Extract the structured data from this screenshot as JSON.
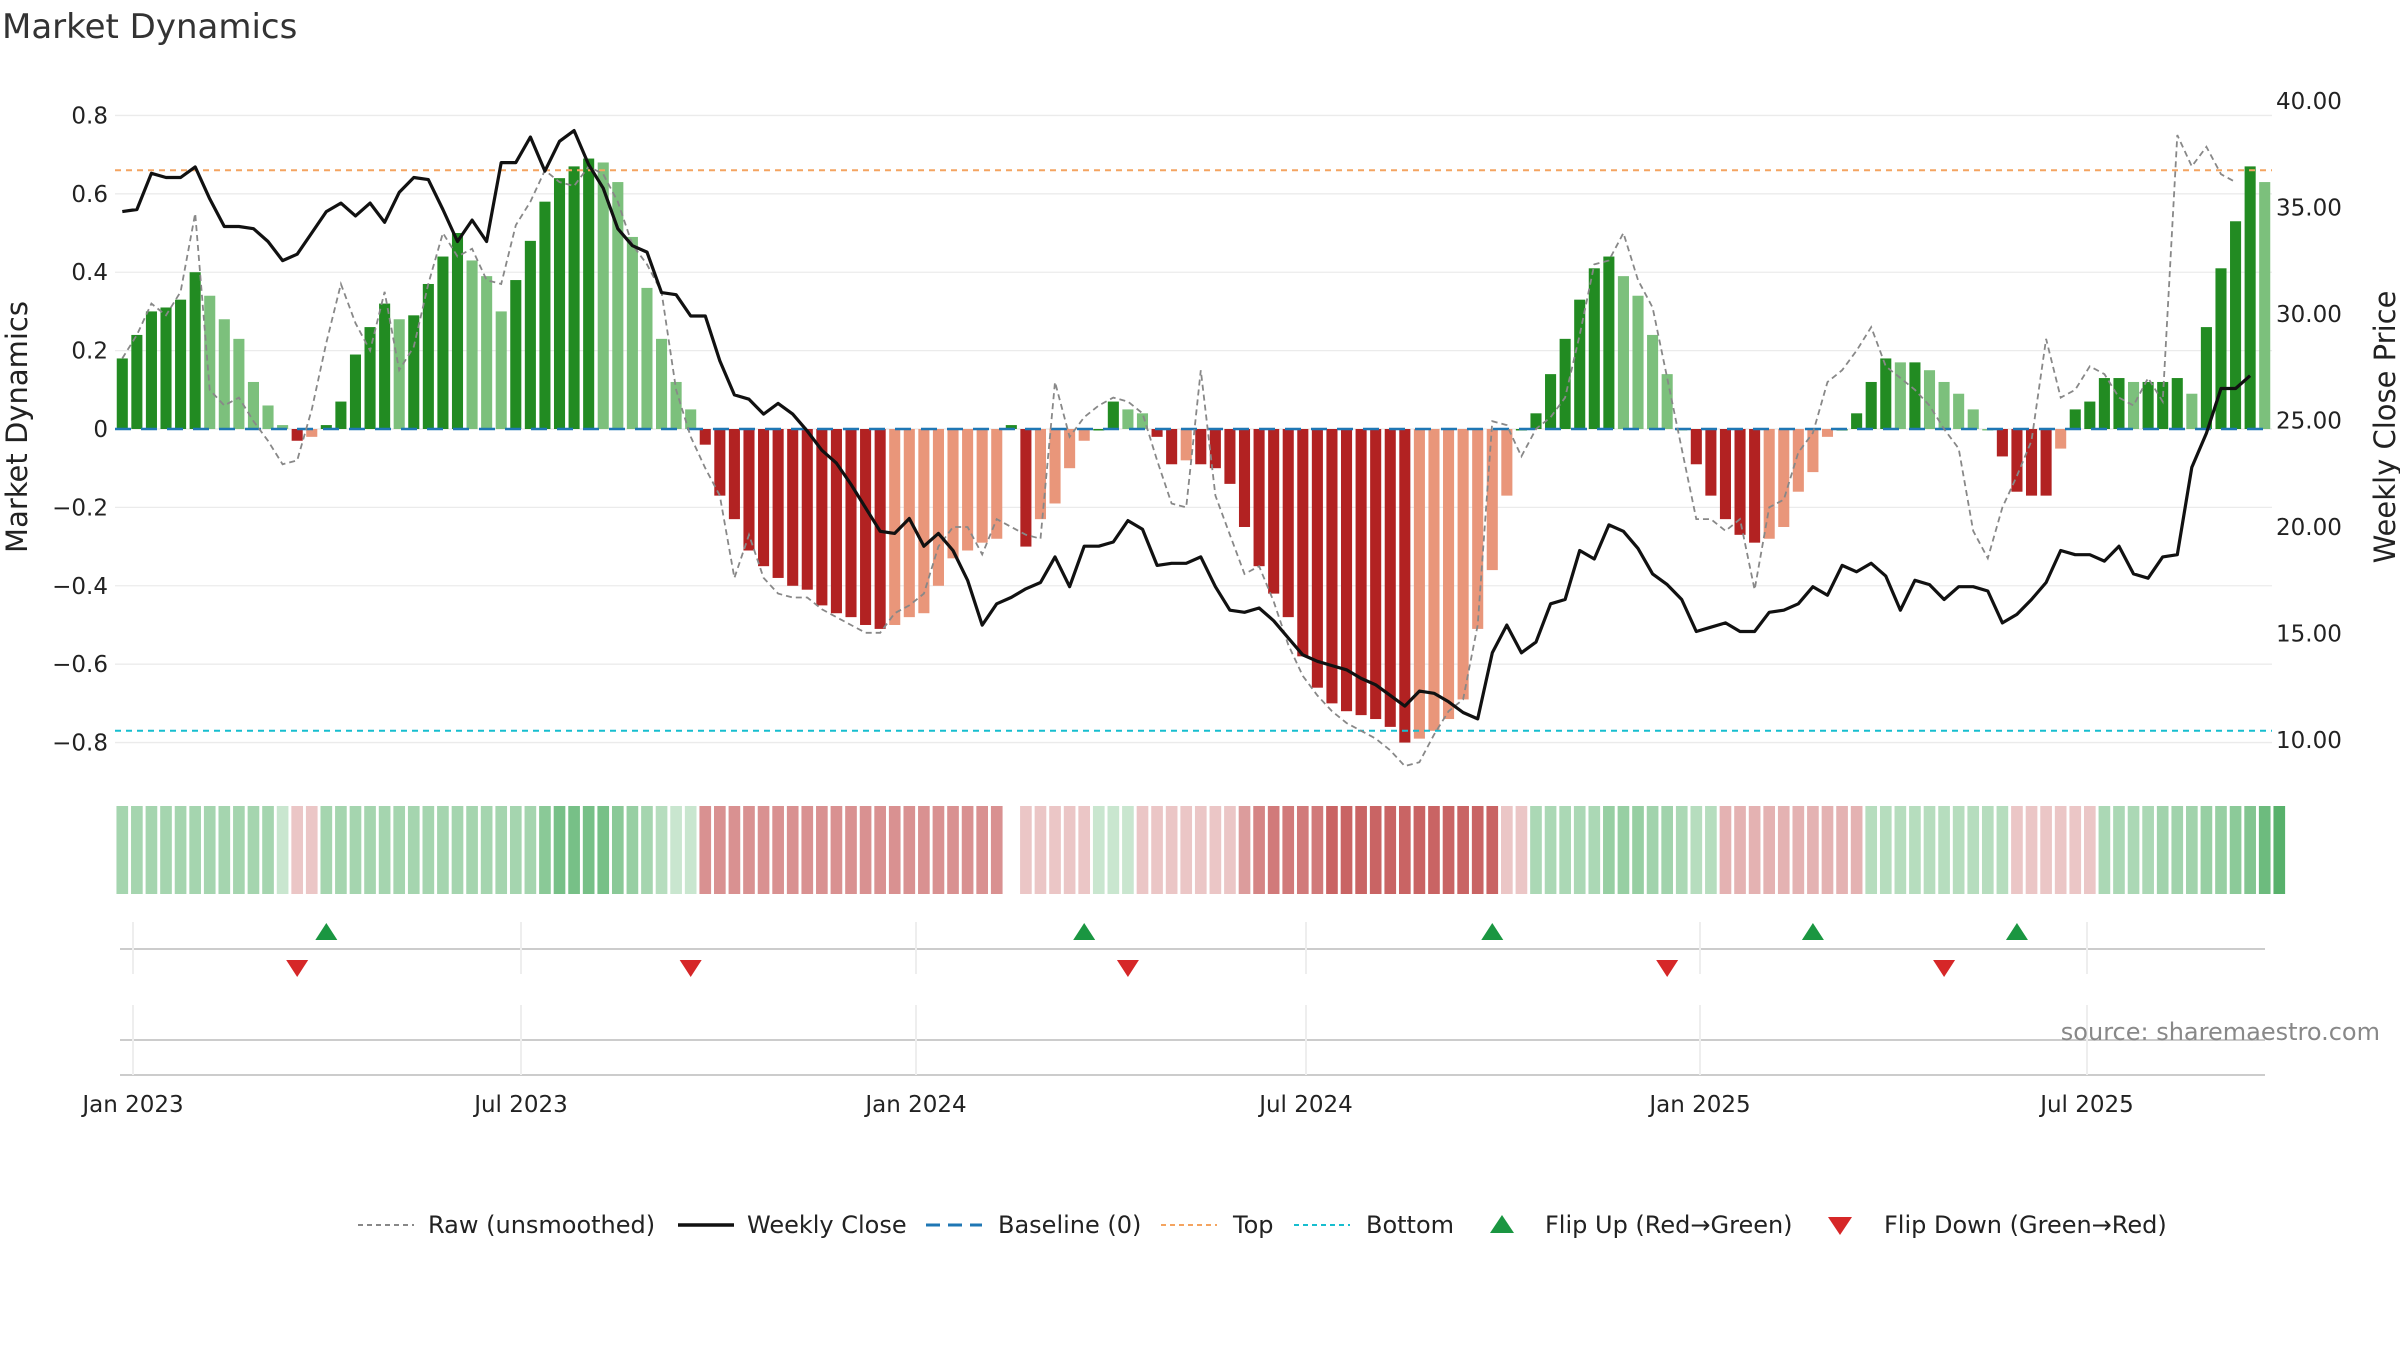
{
  "chart_data": {
    "type": "bar",
    "title": "Market Dynamics",
    "ylabel": "Market Dynamics",
    "y2label": "Weekly Close Price",
    "ylim": [
      -0.87,
      0.87
    ],
    "y2lim": [
      8.6,
      40.6
    ],
    "yticks": [
      "0.8",
      "0.6",
      "0.4",
      "0.2",
      "0",
      "−0.2",
      "−0.4",
      "−0.6",
      "−0.8"
    ],
    "y2ticks": [
      "40.00",
      "35.00",
      "30.00",
      "25.00",
      "20.00",
      "15.00",
      "10.00"
    ],
    "xticks": [
      "Jan 2023",
      "Jul 2023",
      "Jan 2024",
      "Jul 2024",
      "Jan 2025",
      "Jul 2025"
    ],
    "baseline": 0,
    "top": 0.66,
    "bottom": -0.77,
    "grid": true,
    "legend_position": "bottom",
    "legend": [
      "Raw (unsmoothed)",
      "Weekly Close",
      "Baseline (0)",
      "Top",
      "Bottom",
      "Flip Up (Red→Green)",
      "Flip Down (Green→Red)"
    ],
    "source": "source: sharemaestro.com",
    "colors": {
      "strong_green": "#228b22",
      "light_green": "#7cc07c",
      "strong_red": "#b22222",
      "light_red": "#e9967a",
      "close": "#111111",
      "raw": "#888888",
      "baseline": "#1f77b4",
      "top": "#f4a460",
      "bottom": "#17becf",
      "flip_up": "#1a9641",
      "flip_down": "#d62728"
    },
    "series": [
      {
        "name": "Market Dynamics",
        "values": [
          0.18,
          0.24,
          0.3,
          0.31,
          0.33,
          0.4,
          0.34,
          0.28,
          0.23,
          0.12,
          0.06,
          0.01,
          -0.03,
          -0.02,
          0.01,
          0.07,
          0.19,
          0.26,
          0.32,
          0.28,
          0.29,
          0.37,
          0.44,
          0.5,
          0.43,
          0.39,
          0.3,
          0.38,
          0.48,
          0.58,
          0.64,
          0.67,
          0.69,
          0.68,
          0.63,
          0.49,
          0.36,
          0.23,
          0.12,
          0.05,
          -0.04,
          -0.17,
          -0.23,
          -0.31,
          -0.35,
          -0.38,
          -0.4,
          -0.41,
          -0.45,
          -0.47,
          -0.48,
          -0.5,
          -0.51,
          -0.5,
          -0.48,
          -0.47,
          -0.4,
          -0.33,
          -0.31,
          -0.29,
          -0.28,
          0.01,
          -0.3,
          -0.23,
          -0.19,
          -0.1,
          -0.03,
          0.0,
          0.07,
          0.05,
          0.04,
          -0.02,
          -0.09,
          -0.08,
          -0.09,
          -0.1,
          -0.14,
          -0.25,
          -0.35,
          -0.42,
          -0.48,
          -0.58,
          -0.66,
          -0.7,
          -0.72,
          -0.73,
          -0.74,
          -0.76,
          -0.8,
          -0.79,
          -0.77,
          -0.74,
          -0.69,
          -0.51,
          -0.36,
          -0.17,
          0.0,
          0.04,
          0.14,
          0.23,
          0.33,
          0.41,
          0.44,
          0.39,
          0.34,
          0.24,
          0.14,
          0.0,
          -0.09,
          -0.17,
          -0.23,
          -0.27,
          -0.29,
          -0.28,
          -0.25,
          -0.16,
          -0.11,
          -0.02,
          0.0,
          0.04,
          0.12,
          0.18,
          0.17,
          0.17,
          0.15,
          0.12,
          0.09,
          0.05,
          0.0,
          -0.07,
          -0.16,
          -0.17,
          -0.17,
          -0.05,
          0.05,
          0.07,
          0.13,
          0.13,
          0.12,
          0.12,
          0.12,
          0.13,
          0.09,
          0.26,
          0.41,
          0.53,
          0.67,
          0.63
        ]
      },
      {
        "name": "Raw (unsmoothed)",
        "values": [
          0.18,
          0.24,
          0.32,
          0.29,
          0.35,
          0.55,
          0.1,
          0.06,
          0.08,
          0.02,
          -0.03,
          -0.09,
          -0.08,
          0.05,
          0.22,
          0.37,
          0.27,
          0.2,
          0.35,
          0.15,
          0.21,
          0.37,
          0.5,
          0.44,
          0.46,
          0.38,
          0.37,
          0.52,
          0.58,
          0.66,
          0.63,
          0.62,
          0.67,
          0.65,
          0.58,
          0.47,
          0.42,
          0.35,
          0.1,
          -0.02,
          -0.1,
          -0.17,
          -0.38,
          -0.27,
          -0.38,
          -0.42,
          -0.43,
          -0.43,
          -0.46,
          -0.48,
          -0.5,
          -0.52,
          -0.52,
          -0.47,
          -0.45,
          -0.42,
          -0.3,
          -0.25,
          -0.25,
          -0.32,
          -0.23,
          -0.25,
          -0.27,
          -0.28,
          0.12,
          -0.02,
          0.03,
          0.06,
          0.08,
          0.07,
          0.04,
          -0.08,
          -0.19,
          -0.2,
          0.15,
          -0.17,
          -0.27,
          -0.37,
          -0.35,
          -0.44,
          -0.55,
          -0.63,
          -0.68,
          -0.72,
          -0.75,
          -0.77,
          -0.79,
          -0.82,
          -0.86,
          -0.85,
          -0.78,
          -0.72,
          -0.69,
          -0.5,
          0.02,
          0.01,
          -0.07,
          0.0,
          0.03,
          0.08,
          0.24,
          0.42,
          0.43,
          0.5,
          0.38,
          0.31,
          0.13,
          -0.05,
          -0.23,
          -0.23,
          -0.26,
          -0.23,
          -0.41,
          -0.2,
          -0.18,
          -0.06,
          -0.01,
          0.12,
          0.15,
          0.2,
          0.26,
          0.16,
          0.13,
          0.1,
          0.06,
          0.0,
          -0.05,
          -0.26,
          -0.33,
          -0.2,
          -0.12,
          -0.03,
          0.23,
          0.08,
          0.1,
          0.16,
          0.14,
          0.08,
          0.06,
          0.13,
          0.07,
          0.75,
          0.67,
          0.72,
          0.65,
          0.63
        ]
      },
      {
        "name": "Weekly Close",
        "values": [
          34.8,
          34.9,
          36.6,
          36.4,
          36.4,
          36.9,
          35.4,
          34.1,
          34.1,
          34.0,
          33.4,
          32.5,
          32.8,
          33.8,
          34.8,
          35.2,
          34.6,
          35.2,
          34.3,
          35.7,
          36.4,
          36.3,
          34.9,
          33.4,
          34.4,
          33.4,
          37.1,
          37.1,
          38.3,
          36.7,
          38.1,
          38.6,
          37.0,
          35.9,
          34.0,
          33.2,
          32.9,
          31.0,
          30.9,
          29.9,
          29.9,
          27.8,
          26.2,
          26.0,
          25.3,
          25.8,
          25.3,
          24.5,
          23.6,
          23.0,
          22.0,
          20.9,
          19.8,
          19.7,
          20.4,
          19.1,
          19.7,
          18.9,
          17.5,
          15.4,
          16.4,
          16.7,
          17.1,
          17.4,
          18.6,
          17.2,
          19.1,
          19.1,
          19.3,
          20.3,
          19.9,
          18.2,
          18.3,
          18.3,
          18.6,
          17.2,
          16.1,
          16.0,
          16.2,
          15.6,
          14.8,
          14.0,
          13.7,
          13.5,
          13.3,
          12.9,
          12.6,
          12.1,
          11.6,
          12.3,
          12.2,
          11.8,
          11.3,
          11.0,
          14.1,
          15.4,
          14.1,
          14.6,
          16.4,
          16.6,
          18.9,
          18.5,
          20.1,
          19.8,
          19.0,
          17.8,
          17.3,
          16.6,
          15.1,
          15.3,
          15.5,
          15.1,
          15.1,
          16.0,
          16.1,
          16.4,
          17.2,
          16.8,
          18.2,
          17.9,
          18.3,
          17.7,
          16.1,
          17.5,
          17.3,
          16.6,
          17.2,
          17.2,
          17.0,
          15.5,
          15.9,
          16.6,
          17.4,
          18.9,
          18.7,
          18.7,
          18.4,
          19.1,
          17.8,
          17.6,
          18.6,
          18.7,
          22.8,
          24.4,
          26.5,
          26.5,
          27.1
        ]
      }
    ],
    "regime_strip": [
      0.43,
      0.43,
      0.43,
      0.43,
      0.43,
      0.43,
      0.43,
      0.43,
      0.43,
      0.43,
      0.43,
      0.26,
      -0.26,
      -0.26,
      0.43,
      0.43,
      0.43,
      0.43,
      0.43,
      0.43,
      0.43,
      0.43,
      0.43,
      0.43,
      0.43,
      0.43,
      0.43,
      0.43,
      0.43,
      0.56,
      0.65,
      0.65,
      0.65,
      0.65,
      0.56,
      0.5,
      0.43,
      0.35,
      0.26,
      0.26,
      -0.5,
      -0.5,
      -0.5,
      -0.5,
      -0.5,
      -0.5,
      -0.5,
      -0.5,
      -0.5,
      -0.5,
      -0.5,
      -0.5,
      -0.5,
      -0.5,
      -0.5,
      -0.5,
      -0.5,
      -0.5,
      -0.5,
      -0.5,
      -0.5,
      0.0,
      -0.26,
      -0.26,
      -0.26,
      -0.26,
      -0.26,
      0.26,
      0.26,
      0.26,
      -0.26,
      -0.26,
      -0.26,
      -0.26,
      -0.26,
      -0.26,
      -0.26,
      -0.45,
      -0.55,
      -0.6,
      -0.6,
      -0.6,
      -0.6,
      -0.7,
      -0.7,
      -0.7,
      -0.7,
      -0.7,
      -0.7,
      -0.7,
      -0.7,
      -0.7,
      -0.7,
      -0.7,
      -0.7,
      -0.26,
      -0.26,
      0.4,
      0.4,
      0.4,
      0.4,
      0.4,
      0.5,
      0.5,
      0.5,
      0.45,
      0.45,
      0.4,
      0.35,
      0.35,
      -0.35,
      -0.35,
      -0.35,
      -0.35,
      -0.35,
      -0.35,
      -0.35,
      -0.35,
      -0.35,
      -0.35,
      0.35,
      0.35,
      0.35,
      0.35,
      0.35,
      0.35,
      0.35,
      0.35,
      0.35,
      0.35,
      -0.26,
      -0.26,
      -0.26,
      -0.26,
      -0.26,
      -0.26,
      0.4,
      0.4,
      0.4,
      0.4,
      0.45,
      0.45,
      0.45,
      0.5,
      0.5,
      0.55,
      0.6,
      0.7,
      0.8
    ],
    "flips_up": [
      14,
      66,
      94,
      116,
      130
    ],
    "flips_down": [
      12,
      39,
      69,
      106,
      125
    ]
  }
}
